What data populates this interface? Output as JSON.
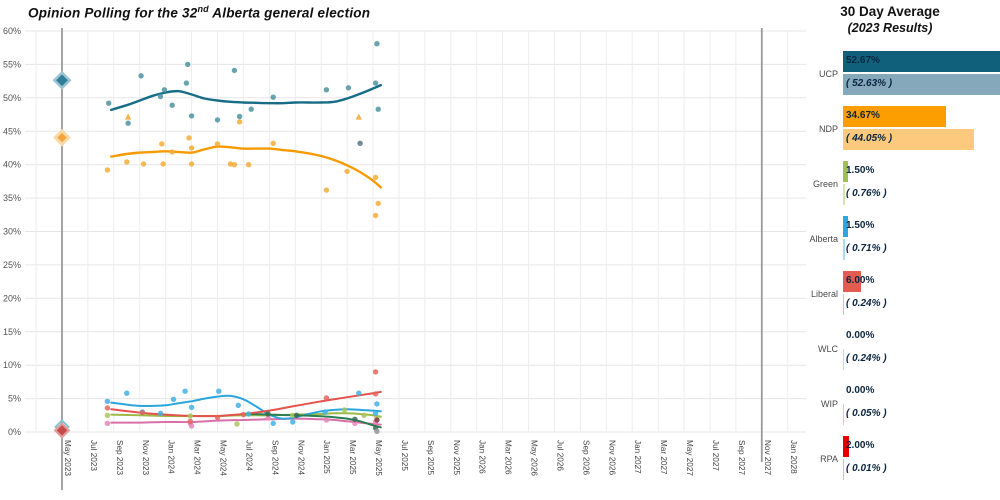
{
  "page": {
    "title_prefix": "Opinion Polling for the 32",
    "title_sup": "nd",
    "title_suffix": " Alberta general election"
  },
  "panel": {
    "title": "30 Day Average",
    "subtitle": "(2023 Results)",
    "max_scale": 52.67,
    "parties": [
      {
        "name": "UCP",
        "avg_label": "52.67%",
        "result_label": "( 52.63% )",
        "avg_value": 52.67,
        "result_value": 52.63,
        "color": "#11607b",
        "light_color": "#85a8bb"
      },
      {
        "name": "NDP",
        "avg_label": "34.67%",
        "result_label": "( 44.05% )",
        "avg_value": 34.67,
        "result_value": 44.05,
        "color": "#fc9e02",
        "light_color": "#fcc97d"
      },
      {
        "name": "Green",
        "avg_label": "1.50%",
        "result_label": "( 0.76% )",
        "avg_value": 1.5,
        "result_value": 0.76,
        "color": "#a2bf56",
        "light_color": "#d5e4ab"
      },
      {
        "name": "Alberta",
        "avg_label": "1.50%",
        "result_label": "( 0.71% )",
        "avg_value": 1.5,
        "result_value": 0.71,
        "color": "#2da7e0",
        "light_color": "#a8dcf2"
      },
      {
        "name": "Liberal",
        "avg_label": "6.00%",
        "result_label": "( 0.24% )",
        "avg_value": 6.0,
        "result_value": 0.24,
        "color": "#e25c52",
        "light_color": "#f3b6b2"
      },
      {
        "name": "WLC",
        "avg_label": "0.00%",
        "result_label": "( 0.24% )",
        "avg_value": 0.0,
        "result_value": 0.24,
        "color": "#d46fa8",
        "light_color": "#eec3da"
      },
      {
        "name": "WIP",
        "avg_label": "0.00%",
        "result_label": "( 0.05% )",
        "avg_value": 0.0,
        "result_value": 0.05,
        "color": "#2b7d52",
        "light_color": "#bcd8c8"
      },
      {
        "name": "RPA",
        "avg_label": "2.00%",
        "result_label": "( 0.01% )",
        "avg_value": 2.0,
        "result_value": 0.01,
        "color": "#e60000",
        "light_color": "#f5b0b0"
      }
    ]
  },
  "chart_data": {
    "type": "scatter",
    "title": "Opinion Polling for the 32nd Alberta general election",
    "x_axis": {
      "months_per_tick": 2,
      "tick_labels": [
        "May 2023",
        "Jul 2023",
        "Sep 2023",
        "Nov 2023",
        "Jan 2024",
        "Mar 2024",
        "May 2024",
        "Jul 2024",
        "Sep 2024",
        "Nov 2024",
        "Jan 2025",
        "Mar 2025",
        "May 2025",
        "Jul 2025",
        "Sep 2025",
        "Nov 2025",
        "Jan 2026",
        "Mar 2026",
        "May 2026",
        "Jul 2026",
        "Sep 2026",
        "Nov 2026",
        "Jan 2027",
        "Mar 2027",
        "May 2027",
        "Jul 2027",
        "Sep 2027",
        "Nov 2027",
        "Jan 2028"
      ]
    },
    "y_axis": {
      "min": 0,
      "max": 60,
      "step": 5,
      "tick_labels": [
        "0%",
        "5%",
        "10%",
        "15%",
        "20%",
        "25%",
        "30%",
        "35%",
        "40%",
        "45%",
        "50%",
        "55%",
        "60%"
      ]
    },
    "election_markers": [
      {
        "label": "May 2023",
        "month": 0
      },
      {
        "label": "Nov 2027",
        "month": 54
      }
    ],
    "results_2023": {
      "UCP": 52.63,
      "NDP": 44.05,
      "Green": 0.76,
      "Alberta": 0.71,
      "Liberal": 0.24,
      "WLC": 0.24,
      "WIP": 0.05,
      "RPA": 0.01
    },
    "series": [
      {
        "name": "Green",
        "line_color": "#9cba45",
        "point_color": "#a9c45c",
        "trend": [
          [
            3.8,
            2.6
          ],
          [
            6,
            2.5
          ],
          [
            8,
            2.4
          ],
          [
            10,
            2.4
          ],
          [
            12,
            2.4
          ],
          [
            14,
            2.5
          ],
          [
            16,
            2.5
          ],
          [
            18,
            2.6
          ],
          [
            20,
            2.7
          ],
          [
            21,
            2.8
          ],
          [
            22,
            2.8
          ],
          [
            23,
            2.7
          ],
          [
            24,
            2.5
          ],
          [
            24.6,
            2.3
          ]
        ],
        "points": [
          [
            3.5,
            2.5
          ],
          [
            9.9,
            2.4
          ],
          [
            13.5,
            1.2
          ],
          [
            17.8,
            2.5
          ],
          [
            21.8,
            3.3
          ],
          [
            23.3,
            2.5
          ],
          [
            24.3,
            2.2
          ]
        ]
      },
      {
        "name": "WLC",
        "line_color": "#d96fa8",
        "point_color": "#e886b8",
        "trend": [
          [
            3.8,
            1.4
          ],
          [
            6,
            1.4
          ],
          [
            8,
            1.5
          ],
          [
            10,
            1.5
          ],
          [
            12,
            1.7
          ],
          [
            14,
            1.8
          ],
          [
            16,
            1.9
          ],
          [
            18,
            2.0
          ],
          [
            20,
            1.9
          ],
          [
            21,
            1.8
          ],
          [
            22,
            1.6
          ],
          [
            23,
            1.4
          ],
          [
            24,
            1.2
          ],
          [
            24.6,
            1.1
          ]
        ],
        "points": [
          [
            3.5,
            1.3
          ],
          [
            9.9,
            1.3
          ],
          [
            10,
            0.9
          ],
          [
            15.9,
            2.1
          ],
          [
            20.4,
            1.8
          ],
          [
            22.6,
            1.3
          ],
          [
            24.2,
            1.5
          ]
        ]
      },
      {
        "name": "Alberta",
        "line_color": "#2aa6dc",
        "point_color": "#41b0e4",
        "trend": [
          [
            3.8,
            4.4
          ],
          [
            5,
            4.1
          ],
          [
            6,
            3.9
          ],
          [
            7,
            3.9
          ],
          [
            8,
            4.0
          ],
          [
            9,
            4.3
          ],
          [
            10,
            4.6
          ],
          [
            11,
            5.0
          ],
          [
            12,
            5.3
          ],
          [
            13,
            5.4
          ],
          [
            14,
            4.9
          ],
          [
            15,
            3.8
          ],
          [
            16,
            2.6
          ],
          [
            17,
            2.0
          ],
          [
            18,
            2.2
          ],
          [
            19,
            2.7
          ],
          [
            20,
            3.1
          ],
          [
            21,
            3.3
          ],
          [
            22,
            3.4
          ],
          [
            23,
            3.3
          ],
          [
            24,
            3.2
          ],
          [
            24.6,
            3.1
          ]
        ],
        "points": [
          [
            3.5,
            4.6
          ],
          [
            5.0,
            5.8
          ],
          [
            6.2,
            3.0
          ],
          [
            7.6,
            2.8
          ],
          [
            8.6,
            4.9
          ],
          [
            9.5,
            6.1
          ],
          [
            10,
            3.7
          ],
          [
            12.1,
            6.1
          ],
          [
            13.6,
            4.0
          ],
          [
            14.4,
            2.7
          ],
          [
            16.3,
            1.3
          ],
          [
            17.8,
            1.5
          ],
          [
            20.3,
            3.0
          ],
          [
            22.9,
            5.8
          ],
          [
            24.2,
            2.8
          ],
          [
            24.3,
            4.2
          ]
        ]
      },
      {
        "name": "WIP",
        "line_color": "#2b7d52",
        "point_color": "#356f52",
        "trend": [
          [
            14.5,
            2.7
          ],
          [
            16,
            2.6
          ],
          [
            17,
            2.55
          ],
          [
            18,
            2.5
          ],
          [
            19,
            2.45
          ],
          [
            20,
            2.35
          ],
          [
            21,
            2.2
          ],
          [
            22,
            2.0
          ],
          [
            23,
            1.6
          ],
          [
            24,
            1.0
          ],
          [
            24.6,
            0.7
          ]
        ],
        "points": [
          [
            15.9,
            2.7
          ],
          [
            18.1,
            2.5
          ],
          [
            22.6,
            1.9
          ],
          [
            24.2,
            0.6
          ]
        ]
      },
      {
        "name": "Liberal",
        "line_color": "#e4524b",
        "point_color": "#e4655c",
        "trend": [
          [
            3.8,
            3.4
          ],
          [
            6,
            2.9
          ],
          [
            8,
            2.6
          ],
          [
            10,
            2.4
          ],
          [
            12,
            2.4
          ],
          [
            14,
            2.7
          ],
          [
            16,
            3.2
          ],
          [
            18,
            3.9
          ],
          [
            20,
            4.6
          ],
          [
            22,
            5.2
          ],
          [
            24,
            5.8
          ],
          [
            24.6,
            6.0
          ]
        ],
        "points": [
          [
            3.5,
            3.6
          ],
          [
            6.2,
            2.9
          ],
          [
            9.9,
            1.6
          ],
          [
            12,
            2.2
          ],
          [
            14,
            2.6
          ],
          [
            20.4,
            5.1
          ],
          [
            24.2,
            9.0
          ],
          [
            24.2,
            5.7
          ]
        ]
      },
      {
        "name": "NDP",
        "line_color": "#f79a00",
        "point_color": "#f6ab38",
        "trend": [
          [
            3.8,
            41.2
          ],
          [
            5,
            41.6
          ],
          [
            6,
            41.8
          ],
          [
            7,
            41.9
          ],
          [
            8,
            42.0
          ],
          [
            9,
            41.9
          ],
          [
            10,
            41.8
          ],
          [
            11,
            42.3
          ],
          [
            12,
            42.7
          ],
          [
            13,
            42.6
          ],
          [
            14,
            42.4
          ],
          [
            15,
            42.4
          ],
          [
            16,
            42.4
          ],
          [
            17,
            42.2
          ],
          [
            18,
            42.0
          ],
          [
            19,
            41.7
          ],
          [
            20,
            41.3
          ],
          [
            21,
            40.7
          ],
          [
            22,
            39.9
          ],
          [
            23,
            38.9
          ],
          [
            24,
            37.6
          ],
          [
            24.6,
            36.6
          ]
        ],
        "points": [
          [
            3.5,
            39.2
          ],
          [
            5.0,
            40.4
          ],
          [
            5.1,
            47.1,
            "t"
          ],
          [
            6.3,
            40.1
          ],
          [
            7.7,
            43.1
          ],
          [
            7.8,
            40.1
          ],
          [
            8.5,
            41.9
          ],
          [
            9.8,
            44.0
          ],
          [
            10.0,
            42.5
          ],
          [
            10.0,
            40.1
          ],
          [
            12.0,
            43.1
          ],
          [
            13.0,
            40.1
          ],
          [
            13.3,
            40.0
          ],
          [
            13.7,
            46.4
          ],
          [
            14.4,
            40.0
          ],
          [
            16.3,
            43.2
          ],
          [
            20.4,
            36.2
          ],
          [
            22.0,
            39.0
          ],
          [
            22.9,
            47.1,
            "t"
          ],
          [
            24.2,
            38.1
          ],
          [
            24.4,
            34.2
          ],
          [
            24.2,
            32.4
          ]
        ]
      },
      {
        "name": "UCP",
        "line_color": "#176d87",
        "point_color": "#4e93a0",
        "trend": [
          [
            3.8,
            48.2
          ],
          [
            5,
            48.9
          ],
          [
            6,
            49.6
          ],
          [
            7,
            50.3
          ],
          [
            8,
            50.8
          ],
          [
            9,
            51.0
          ],
          [
            10,
            50.5
          ],
          [
            11,
            49.9
          ],
          [
            12,
            49.6
          ],
          [
            13,
            49.4
          ],
          [
            14,
            49.3
          ],
          [
            15,
            49.25
          ],
          [
            16,
            49.2
          ],
          [
            17,
            49.2
          ],
          [
            18,
            49.3
          ],
          [
            19,
            49.3
          ],
          [
            20,
            49.3
          ],
          [
            21,
            49.4
          ],
          [
            22,
            49.9
          ],
          [
            23,
            50.6
          ],
          [
            24,
            51.4
          ],
          [
            24.6,
            51.9
          ]
        ],
        "points": [
          [
            3.6,
            49.2
          ],
          [
            5.1,
            46.2
          ],
          [
            6.1,
            53.3
          ],
          [
            7.6,
            50.2
          ],
          [
            7.9,
            51.2
          ],
          [
            8.5,
            48.9
          ],
          [
            9.6,
            52.2
          ],
          [
            9.7,
            55.0
          ],
          [
            10.0,
            47.3
          ],
          [
            12.0,
            46.7
          ],
          [
            13.3,
            54.1
          ],
          [
            13.7,
            47.2
          ],
          [
            14.6,
            48.3
          ],
          [
            16.3,
            50.1
          ],
          [
            20.4,
            51.2
          ],
          [
            22.1,
            51.5
          ],
          [
            24.2,
            52.2
          ],
          [
            24.3,
            58.1
          ],
          [
            24.4,
            48.3
          ]
        ]
      }
    ],
    "other_points": [
      {
        "color": "#607d8b",
        "month": 23.0,
        "value": 43.2
      },
      {
        "color": "#8a4040",
        "month": 24.3,
        "value": 1.8
      },
      {
        "color": "#9a9a9a",
        "month": 24.3,
        "value": 0.1
      }
    ]
  }
}
